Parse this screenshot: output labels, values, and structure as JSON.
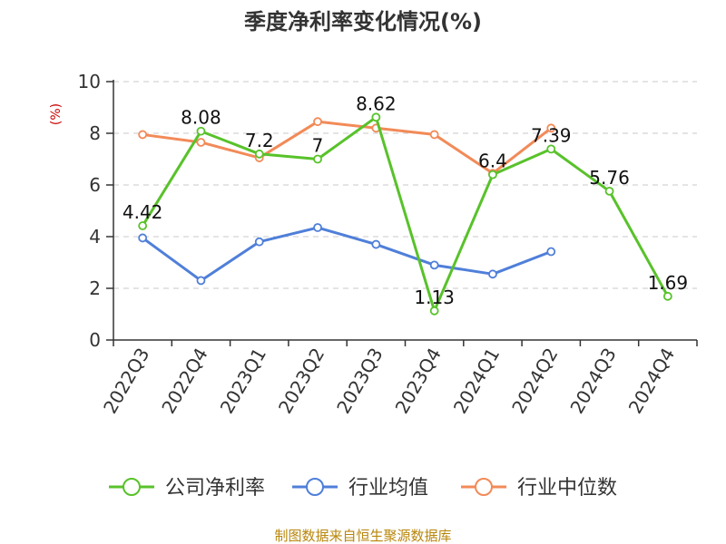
{
  "colors": {
    "profit": "#58c22a",
    "industry_avg": "#4f7fd9",
    "industry_median": "#f28a58",
    "source": "#b8860b"
  },
  "footer": {
    "source": "制图数据来自恒生聚源数据库"
  },
  "chart_data": {
    "type": "line",
    "title": "季度净利率变化情况(%)",
    "ylabel": "(%)",
    "xlabel": "",
    "ylim": [
      0,
      10
    ],
    "yticks": [
      0,
      2,
      4,
      6,
      8,
      10
    ],
    "grid": true,
    "legend_position": "bottom",
    "categories": [
      "2022Q3",
      "2022Q4",
      "2023Q1",
      "2023Q2",
      "2023Q3",
      "2023Q4",
      "2024Q1",
      "2024Q2",
      "2024Q3",
      "2024Q4"
    ],
    "series": [
      {
        "name": "公司净利率",
        "key": "profit",
        "values": [
          4.42,
          8.08,
          7.2,
          7,
          8.62,
          1.13,
          6.4,
          7.39,
          5.76,
          1.69
        ],
        "labels": [
          "4.42",
          "8.08",
          "7.2",
          "7",
          "8.62",
          "1.13",
          "6.4",
          "7.39",
          "5.76",
          "1.69"
        ]
      },
      {
        "name": "行业均值",
        "key": "industry_avg",
        "values": [
          3.95,
          2.3,
          3.8,
          4.35,
          3.7,
          2.9,
          2.55,
          3.42,
          null,
          null
        ]
      },
      {
        "name": "行业中位数",
        "key": "industry_median",
        "values": [
          7.95,
          7.65,
          7.05,
          8.45,
          8.2,
          7.95,
          6.45,
          8.2,
          null,
          null
        ]
      }
    ]
  }
}
